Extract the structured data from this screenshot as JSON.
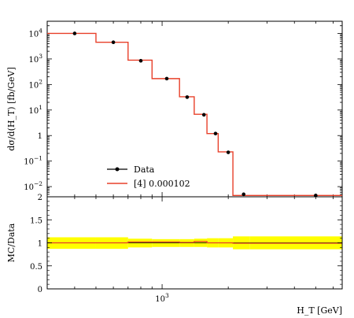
{
  "chart_data": [
    {
      "type": "line",
      "panel": "main",
      "ylabel": "dσ/d(H_T) [fb/GeV]",
      "yscale": "log",
      "ylim": [
        0.004,
        30000
      ],
      "xscale": "log",
      "xlim": [
        300,
        6600
      ],
      "yticks": [
        {
          "value": 10000,
          "base": "10",
          "exp": "4"
        },
        {
          "value": 1000,
          "base": "10",
          "exp": "3"
        },
        {
          "value": 100,
          "base": "10",
          "exp": "2"
        },
        {
          "value": 10,
          "base": "10",
          "exp": "1"
        },
        {
          "value": 1,
          "base": "1",
          "exp": ""
        },
        {
          "value": 0.1,
          "base": "10",
          "exp": "−1"
        },
        {
          "value": 0.01,
          "base": "10",
          "exp": "−2"
        }
      ],
      "legend_position": "lower-left",
      "series": [
        {
          "name": "Data",
          "color": "#000000",
          "style": "points",
          "x": [
            400,
            600,
            800,
            1050,
            1300,
            1550,
            1750,
            2000,
            2350,
            5000
          ],
          "y": [
            10000,
            4500,
            850,
            170,
            32,
            6.5,
            1.2,
            0.22,
            0.005,
            0.0045
          ]
        },
        {
          "name": "[4] 0.000102",
          "color": "#e8402a",
          "style": "histogram",
          "edges": [
            300,
            500,
            700,
            900,
            1200,
            1400,
            1600,
            1800,
            2100,
            2500,
            6600
          ],
          "values": [
            10000,
            4500,
            900,
            170,
            33,
            6.8,
            1.2,
            0.23,
            0.0045,
            0.0045
          ]
        }
      ]
    },
    {
      "type": "line",
      "panel": "ratio",
      "ylabel": "MC/Data",
      "xlabel": "H_T [GeV]",
      "ylim": [
        0,
        2
      ],
      "xscale": "log",
      "xlim": [
        300,
        6600
      ],
      "yticks": [
        "0",
        "0.5",
        "1",
        "1.5",
        "2"
      ],
      "xticks": [
        {
          "value": 1000,
          "base": "10",
          "exp": "3"
        }
      ],
      "bands": {
        "outer_color": "#ffff00",
        "inner_color": "#cccc00",
        "edges": [
          300,
          500,
          700,
          900,
          1200,
          1400,
          1600,
          1800,
          2100,
          2500,
          6600
        ],
        "outer_low": [
          0.87,
          0.87,
          0.9,
          0.91,
          0.91,
          0.91,
          0.9,
          0.9,
          0.86,
          0.86
        ],
        "outer_high": [
          1.12,
          1.12,
          1.09,
          1.08,
          1.08,
          1.09,
          1.1,
          1.1,
          1.14,
          1.14
        ]
      },
      "series": [
        {
          "name": "[4] 0.000102",
          "color": "#e8402a",
          "edges": [
            300,
            500,
            700,
            900,
            1200,
            1400,
            1600,
            1800,
            2100,
            2500,
            6600
          ],
          "values": [
            1.0,
            1.0,
            1.02,
            1.02,
            1.01,
            1.03,
            1.0,
            1.0,
            0.99,
            0.99
          ]
        }
      ]
    }
  ]
}
